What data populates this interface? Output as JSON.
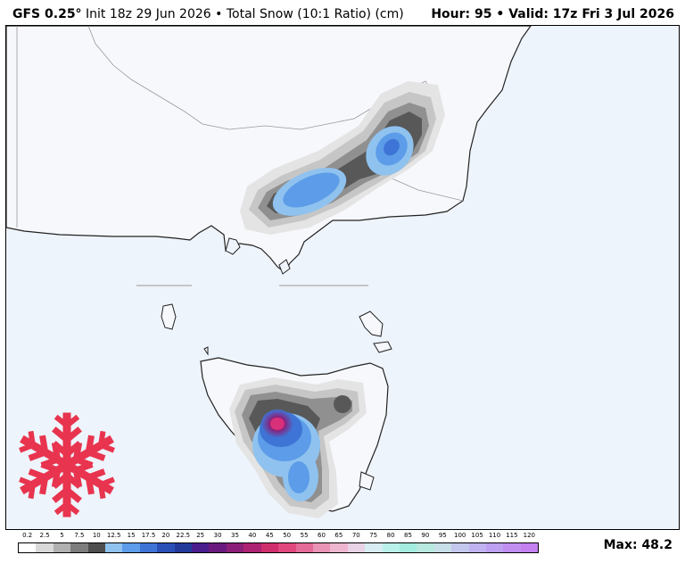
{
  "header": {
    "model": "GFS 0.25°",
    "init": "Init 18z 29 Jun 2026",
    "separator": "•",
    "product": "Total Snow (10:1 Ratio) (cm)",
    "hour": "Hour: 95",
    "valid": "Valid: 17z Fri 3 Jul 2026"
  },
  "map": {
    "land_color": "#f7f8fc",
    "ocean_color": "#eef4fb",
    "logo_icon": "snowflake-icon",
    "logo_color": "#e8344e"
  },
  "scale": {
    "ticks": [
      "0.2",
      "2.5",
      "5",
      "7.5",
      "10",
      "12.5",
      "15",
      "17.5",
      "20",
      "22.5",
      "25",
      "30",
      "35",
      "40",
      "45",
      "50",
      "55",
      "60",
      "65",
      "70",
      "75",
      "80",
      "85",
      "90",
      "95",
      "100",
      "105",
      "110",
      "115",
      "120"
    ],
    "colors": [
      "#ffffff",
      "#d9d9d9",
      "#b0b0b0",
      "#7d7d7d",
      "#4e4e4e",
      "#8fc2ef",
      "#5c9ce8",
      "#3e74d6",
      "#2a50b8",
      "#23399a",
      "#4a1e8c",
      "#6a1a7e",
      "#8b1f78",
      "#ad2273",
      "#cf2e6d",
      "#e0487e",
      "#e46b98",
      "#e993b6",
      "#eeb6cf",
      "#e9d3e6",
      "#d8ecf3",
      "#b9f1ea",
      "#a4ece0",
      "#b8e8df",
      "#c7dfe8",
      "#c4c8ee",
      "#c0b2f0",
      "#bea0f0",
      "#c08ff0",
      "#c481f0"
    ]
  },
  "max": "Max: 48.2"
}
